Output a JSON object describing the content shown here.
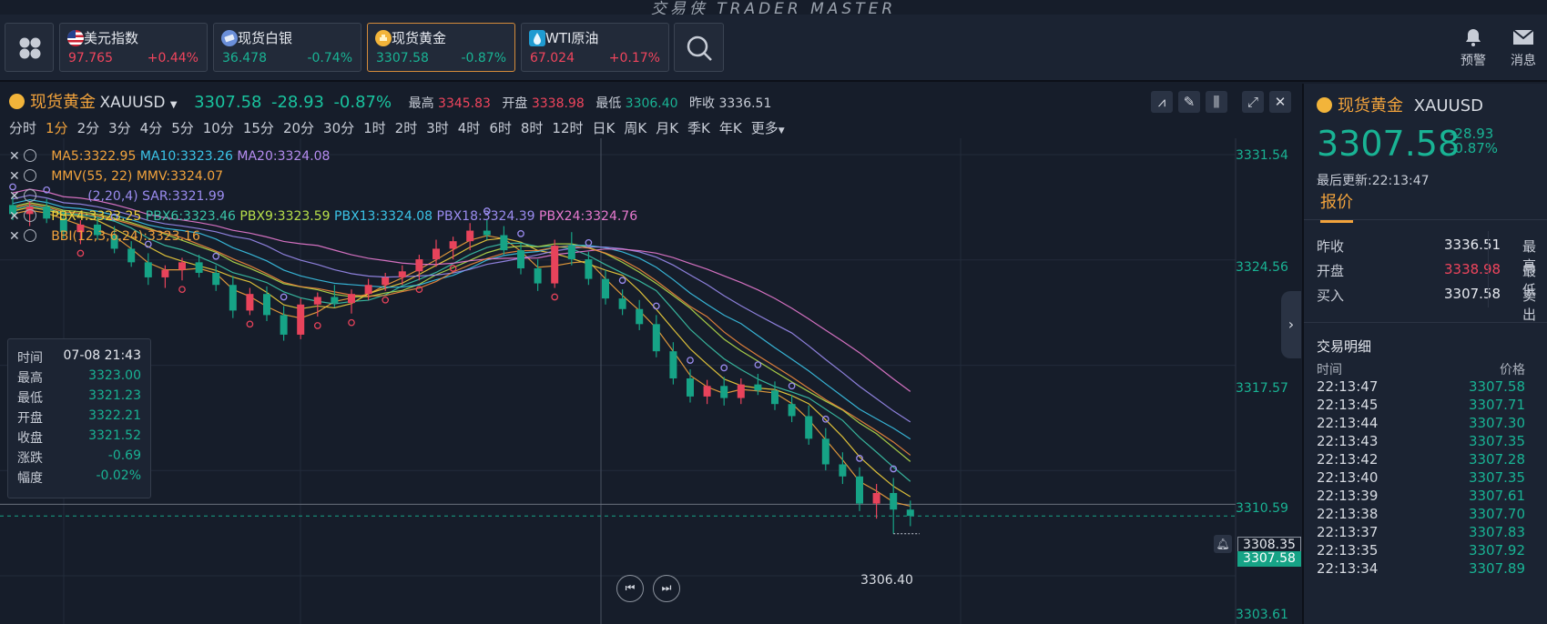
{
  "brand": "交易侠 TRADER MASTER",
  "tickers": [
    {
      "name": "美元指数",
      "price": "97.765",
      "change": "+0.44%",
      "dir": "up",
      "icon": "us-flag-icon"
    },
    {
      "name": "现货白银",
      "price": "36.478",
      "change": "-0.74%",
      "dir": "down",
      "icon": "silver-icon"
    },
    {
      "name": "现货黄金",
      "price": "3307.58",
      "change": "-0.87%",
      "dir": "down",
      "icon": "gold-icon",
      "active": true
    },
    {
      "name": "WTI原油",
      "price": "67.024",
      "change": "+0.17%",
      "dir": "up",
      "icon": "oil-icon"
    }
  ],
  "topbar_right": {
    "alert_label": "预警",
    "message_label": "消息"
  },
  "chart_header": {
    "symbol_name": "现货黄金",
    "symbol_code": "XAUUSD",
    "price": "3307.58",
    "change": "-28.93",
    "change_pct": "-0.87%",
    "high_label": "最高",
    "high": "3345.83",
    "open_label": "开盘",
    "open": "3338.98",
    "low_label": "最低",
    "low": "3306.40",
    "prev_label": "昨收",
    "prev": "3336.51"
  },
  "periods": [
    "分时",
    "1分",
    "2分",
    "3分",
    "4分",
    "5分",
    "10分",
    "15分",
    "20分",
    "30分",
    "1时",
    "2时",
    "3时",
    "4时",
    "6时",
    "8时",
    "12时",
    "日K",
    "周K",
    "月K",
    "季K",
    "年K",
    "更多"
  ],
  "selected_period": "1分",
  "indicators": {
    "ma5": "MA5:3322.95",
    "ma10": "MA10:3323.26",
    "ma20": "MA20:3324.08",
    "mmv": "MMV(55, 22) MMV:3324.07",
    "sar_label": "(2,20,4) SAR:3321.99",
    "pbx4": "PBX4:3323.25",
    "pbx6": "PBX6:3323.46",
    "pbx9": "PBX9:3323.59",
    "pbx13": "PBX13:3324.08",
    "pbx18": "PBX18:3324.39",
    "pbx24": "PBX24:3324.76",
    "bbi": "BBI(12,3,6,24):3323.16"
  },
  "tooltip": {
    "time_label": "时间",
    "time": "07-08 21:43",
    "high_label": "最高",
    "high": "3323.00",
    "low_label": "最低",
    "low": "3321.23",
    "open_label": "开盘",
    "open": "3322.21",
    "close_label": "收盘",
    "close": "3321.52",
    "chg_label": "涨跌",
    "chg": "-0.69",
    "pct_label": "幅度",
    "pct": "-0.02%"
  },
  "yaxis": [
    "3331.54",
    "3324.56",
    "3317.57",
    "3310.59",
    "3303.61"
  ],
  "crosshair_price": "3308.35",
  "last_price_tag": "3307.58",
  "low_marker": "3306.40",
  "chart_data": {
    "type": "candlestick",
    "ylim": [
      3303.61,
      3331.54
    ],
    "candles": [
      [
        3328.2,
        3328.8,
        3327.2,
        3327.6
      ],
      [
        3327.6,
        3328.4,
        3326.8,
        3328.1
      ],
      [
        3328.1,
        3328.6,
        3327.0,
        3327.3
      ],
      [
        3327.3,
        3327.9,
        3326.0,
        3326.4
      ],
      [
        3326.4,
        3327.2,
        3325.6,
        3326.9
      ],
      [
        3326.9,
        3327.4,
        3325.9,
        3326.2
      ],
      [
        3326.2,
        3326.8,
        3325.0,
        3325.3
      ],
      [
        3325.3,
        3325.8,
        3324.1,
        3324.4
      ],
      [
        3324.4,
        3325.0,
        3322.9,
        3323.4
      ],
      [
        3323.4,
        3324.2,
        3322.7,
        3323.9
      ],
      [
        3323.9,
        3324.7,
        3323.2,
        3324.4
      ],
      [
        3324.4,
        3324.9,
        3323.4,
        3323.7
      ],
      [
        3323.7,
        3324.2,
        3322.5,
        3322.9
      ],
      [
        3322.9,
        3323.5,
        3320.7,
        3321.2
      ],
      [
        3321.2,
        3322.7,
        3320.9,
        3322.3
      ],
      [
        3322.3,
        3322.8,
        3320.5,
        3320.9
      ],
      [
        3320.9,
        3321.5,
        3319.2,
        3319.6
      ],
      [
        3319.6,
        3322.0,
        3319.3,
        3321.6
      ],
      [
        3321.6,
        3322.4,
        3320.8,
        3322.1
      ],
      [
        3322.1,
        3322.9,
        3321.4,
        3321.7
      ],
      [
        3321.7,
        3322.6,
        3321.0,
        3322.3
      ],
      [
        3322.3,
        3323.3,
        3321.9,
        3322.9
      ],
      [
        3322.9,
        3323.7,
        3322.5,
        3323.4
      ],
      [
        3323.4,
        3324.2,
        3322.9,
        3323.8
      ],
      [
        3323.8,
        3324.9,
        3323.2,
        3324.6
      ],
      [
        3324.6,
        3325.9,
        3324.1,
        3325.3
      ],
      [
        3325.3,
        3326.1,
        3324.6,
        3325.8
      ],
      [
        3325.8,
        3327.0,
        3325.2,
        3326.5
      ],
      [
        3326.5,
        3327.2,
        3325.9,
        3326.2
      ],
      [
        3326.2,
        3326.8,
        3324.9,
        3325.2
      ],
      [
        3325.2,
        3325.7,
        3323.6,
        3324.0
      ],
      [
        3324.0,
        3324.6,
        3322.5,
        3323.0
      ],
      [
        3323.0,
        3325.9,
        3322.7,
        3325.5
      ],
      [
        3325.5,
        3326.4,
        3324.2,
        3324.6
      ],
      [
        3324.6,
        3325.1,
        3322.9,
        3323.3
      ],
      [
        3323.3,
        3323.9,
        3321.6,
        3322.0
      ],
      [
        3322.0,
        3322.6,
        3320.9,
        3321.3
      ],
      [
        3321.3,
        3321.9,
        3319.9,
        3320.3
      ],
      [
        3320.3,
        3320.9,
        3318.1,
        3318.5
      ],
      [
        3318.5,
        3319.1,
        3316.3,
        3316.7
      ],
      [
        3316.7,
        3317.3,
        3315.1,
        3315.5
      ],
      [
        3315.5,
        3316.6,
        3315.0,
        3316.2
      ],
      [
        3316.2,
        3316.8,
        3314.9,
        3315.4
      ],
      [
        3315.4,
        3316.7,
        3315.0,
        3316.3
      ],
      [
        3316.3,
        3317.0,
        3315.6,
        3315.9
      ],
      [
        3315.9,
        3316.5,
        3314.6,
        3315.0
      ],
      [
        3315.0,
        3315.6,
        3313.8,
        3314.2
      ],
      [
        3314.2,
        3314.9,
        3312.3,
        3312.7
      ],
      [
        3312.7,
        3313.4,
        3310.6,
        3311.0
      ],
      [
        3311.0,
        3311.8,
        3309.7,
        3310.2
      ],
      [
        3310.2,
        3310.8,
        3307.9,
        3308.4
      ],
      [
        3308.4,
        3309.7,
        3307.4,
        3309.1
      ],
      [
        3309.1,
        3310.1,
        3306.4,
        3308.0
      ],
      [
        3308.0,
        3308.6,
        3306.9,
        3307.58
      ]
    ]
  },
  "right_panel": {
    "symbol_name": "现货黄金",
    "symbol_code": "XAUUSD",
    "price": "3307.58",
    "change": "-28.93",
    "change_pct": "-0.87%",
    "updated": "最后更新:22:13:47",
    "tab": "报价",
    "quote": [
      {
        "k": "昨收",
        "v": "3336.51",
        "k2": "最高",
        "color": "neutral"
      },
      {
        "k": "开盘",
        "v": "3338.98",
        "k2": "最低",
        "color": "up"
      },
      {
        "k": "买入",
        "v": "3307.58",
        "k2": "卖出",
        "color": "neutral"
      }
    ],
    "trades_title": "交易明细",
    "col_time": "时间",
    "col_price": "价格",
    "trades": [
      {
        "t": "22:13:47",
        "p": "3307.58"
      },
      {
        "t": "22:13:45",
        "p": "3307.71"
      },
      {
        "t": "22:13:44",
        "p": "3307.30"
      },
      {
        "t": "22:13:43",
        "p": "3307.35"
      },
      {
        "t": "22:13:42",
        "p": "3307.28"
      },
      {
        "t": "22:13:40",
        "p": "3307.35"
      },
      {
        "t": "22:13:39",
        "p": "3307.61"
      },
      {
        "t": "22:13:38",
        "p": "3307.70"
      },
      {
        "t": "22:13:37",
        "p": "3307.83"
      },
      {
        "t": "22:13:35",
        "p": "3307.92"
      },
      {
        "t": "22:13:34",
        "p": "3307.89"
      }
    ]
  }
}
